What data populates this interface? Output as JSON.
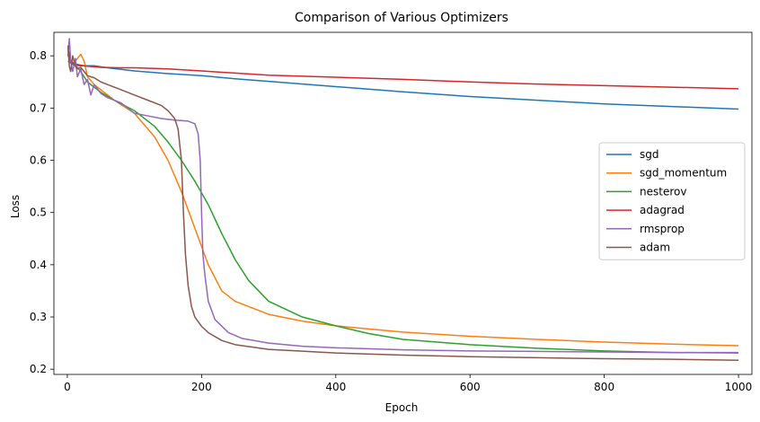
{
  "chart_data": {
    "type": "line",
    "title": "Comparison of Various Optimizers",
    "xlabel": "Epoch",
    "ylabel": "Loss",
    "xlim": [
      -20,
      1020
    ],
    "ylim": [
      0.19,
      0.845
    ],
    "xticks": [
      0,
      200,
      400,
      600,
      800,
      1000
    ],
    "yticks": [
      0.2,
      0.3,
      0.4,
      0.5,
      0.6,
      0.7,
      0.8
    ],
    "grid": false,
    "legend_position": "center-right",
    "series": [
      {
        "name": "sgd",
        "color": "#1f77b4",
        "x": [
          1,
          10,
          20,
          40,
          60,
          100,
          150,
          200,
          250,
          300,
          400,
          500,
          600,
          700,
          800,
          900,
          1000
        ],
        "y": [
          0.79,
          0.782,
          0.781,
          0.781,
          0.777,
          0.771,
          0.766,
          0.762,
          0.756,
          0.751,
          0.741,
          0.731,
          0.722,
          0.715,
          0.708,
          0.703,
          0.698
        ]
      },
      {
        "name": "sgd_momentum",
        "color": "#ff7f0e",
        "x": [
          1,
          5,
          10,
          15,
          20,
          25,
          30,
          40,
          50,
          70,
          100,
          130,
          150,
          170,
          190,
          210,
          230,
          250,
          300,
          350,
          400,
          500,
          600,
          700,
          800,
          900,
          1000
        ],
        "y": [
          0.81,
          0.79,
          0.785,
          0.795,
          0.803,
          0.79,
          0.76,
          0.745,
          0.735,
          0.715,
          0.69,
          0.645,
          0.6,
          0.54,
          0.47,
          0.4,
          0.35,
          0.33,
          0.305,
          0.292,
          0.283,
          0.271,
          0.263,
          0.257,
          0.252,
          0.248,
          0.245
        ]
      },
      {
        "name": "nesterov",
        "color": "#2ca02c",
        "x": [
          1,
          5,
          10,
          20,
          30,
          50,
          70,
          100,
          130,
          150,
          170,
          190,
          210,
          230,
          250,
          270,
          300,
          350,
          400,
          450,
          500,
          600,
          700,
          800,
          900,
          1000
        ],
        "y": [
          0.8,
          0.79,
          0.785,
          0.77,
          0.75,
          0.73,
          0.715,
          0.695,
          0.665,
          0.635,
          0.6,
          0.56,
          0.515,
          0.46,
          0.41,
          0.37,
          0.33,
          0.3,
          0.283,
          0.268,
          0.257,
          0.247,
          0.24,
          0.235,
          0.232,
          0.231
        ]
      },
      {
        "name": "adagrad",
        "color": "#d62728",
        "x": [
          1,
          5,
          10,
          20,
          30,
          50,
          80,
          100,
          150,
          200,
          250,
          300,
          400,
          500,
          600,
          700,
          800,
          900,
          1000
        ],
        "y": [
          0.815,
          0.79,
          0.785,
          0.782,
          0.78,
          0.778,
          0.777,
          0.777,
          0.775,
          0.771,
          0.767,
          0.763,
          0.759,
          0.755,
          0.75,
          0.746,
          0.743,
          0.74,
          0.737
        ]
      },
      {
        "name": "rmsprop",
        "color": "#9467bd",
        "x": [
          1,
          3,
          5,
          8,
          12,
          15,
          20,
          25,
          30,
          35,
          40,
          50,
          60,
          80,
          100,
          120,
          140,
          160,
          180,
          190,
          195,
          198,
          200,
          202,
          205,
          210,
          220,
          240,
          260,
          300,
          350,
          400,
          500,
          600,
          700,
          800,
          900,
          1000
        ],
        "y": [
          0.8,
          0.833,
          0.79,
          0.77,
          0.795,
          0.76,
          0.775,
          0.745,
          0.755,
          0.725,
          0.745,
          0.728,
          0.72,
          0.71,
          0.69,
          0.685,
          0.68,
          0.677,
          0.675,
          0.67,
          0.65,
          0.6,
          0.5,
          0.42,
          0.38,
          0.33,
          0.295,
          0.27,
          0.259,
          0.25,
          0.244,
          0.241,
          0.237,
          0.235,
          0.234,
          0.233,
          0.232,
          0.232
        ]
      },
      {
        "name": "adam",
        "color": "#8c564b",
        "x": [
          1,
          3,
          5,
          8,
          12,
          15,
          20,
          25,
          30,
          40,
          50,
          60,
          70,
          80,
          100,
          120,
          140,
          150,
          160,
          165,
          170,
          173,
          176,
          180,
          185,
          190,
          200,
          210,
          230,
          250,
          300,
          400,
          500,
          600,
          700,
          800,
          900,
          1000
        ],
        "y": [
          0.82,
          0.78,
          0.77,
          0.8,
          0.78,
          0.775,
          0.778,
          0.77,
          0.762,
          0.758,
          0.75,
          0.745,
          0.74,
          0.735,
          0.725,
          0.715,
          0.705,
          0.695,
          0.68,
          0.66,
          0.6,
          0.5,
          0.42,
          0.36,
          0.32,
          0.3,
          0.282,
          0.27,
          0.255,
          0.247,
          0.238,
          0.231,
          0.227,
          0.224,
          0.222,
          0.22,
          0.219,
          0.217
        ]
      }
    ]
  }
}
